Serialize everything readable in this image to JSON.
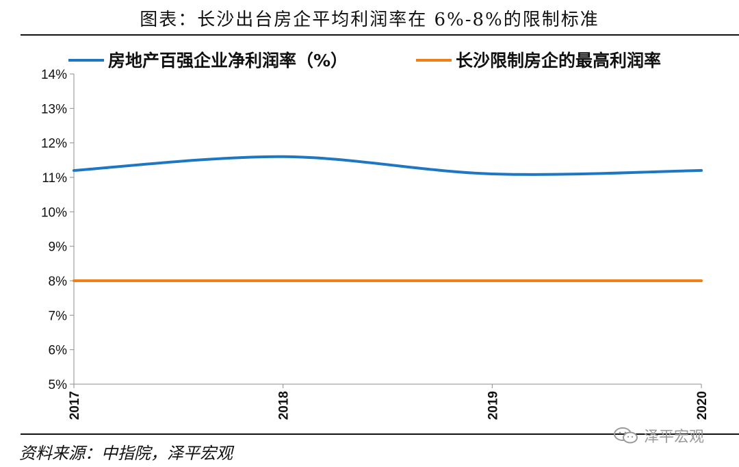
{
  "title": "图表：长沙出台房企平均利润率在 6%-8%的限制标准",
  "source": "资料来源：中指院，泽平宏观",
  "watermark": "泽平宏观",
  "chart_data": {
    "type": "line",
    "categories": [
      "2017",
      "2018",
      "2019",
      "2020"
    ],
    "series": [
      {
        "name": "房地产百强企业净利润率（%）",
        "values": [
          11.2,
          11.6,
          11.1,
          11.2
        ],
        "color": "#1f77c4"
      },
      {
        "name": "长沙限制房企的最高利润率",
        "values": [
          8,
          8,
          8,
          8
        ],
        "color": "#f07f1a"
      }
    ],
    "yticks": [
      "14%",
      "13%",
      "12%",
      "11%",
      "10%",
      "9%",
      "8%",
      "7%",
      "6%",
      "5%"
    ],
    "ylim": [
      5,
      14
    ],
    "legend_position": "top"
  }
}
